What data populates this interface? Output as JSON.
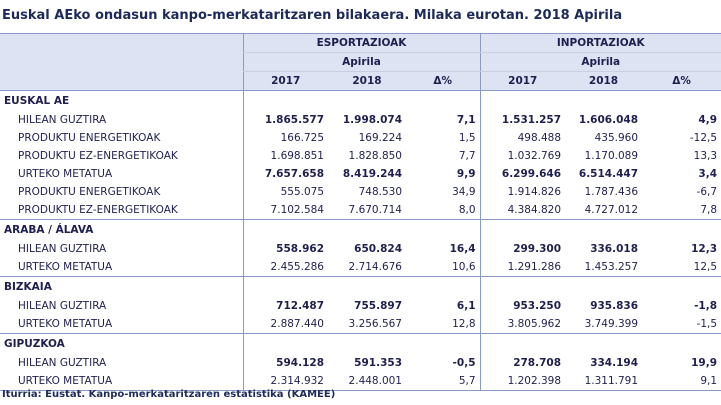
{
  "title": "Euskal AEko ondasun kanpo-merkataritzaren  bilakaera. Milaka eurotan. 2018 Apirila",
  "header": {
    "export_label": "ESPORTAZIOAK",
    "import_label": "INPORTAZIOAK",
    "month_label": "Apirila",
    "cols": [
      "2017",
      "2018",
      "Δ%"
    ]
  },
  "regions": [
    {
      "name": "EUSKAL AE",
      "rows": [
        {
          "label": "HILEAN GUZTIRA",
          "bold": true,
          "values": [
            "1.865.577",
            "1.998.074",
            "7,1",
            "1.531.257",
            "1.606.048",
            "4,9"
          ]
        },
        {
          "label": "PRODUKTU ENERGETIKOAK",
          "bold": false,
          "values": [
            "166.725",
            "169.224",
            "1,5",
            "498.488",
            "435.960",
            "-12,5"
          ]
        },
        {
          "label": "PRODUKTU EZ-ENERGETIKOAK",
          "bold": false,
          "values": [
            "1.698.851",
            "1.828.850",
            "7,7",
            "1.032.769",
            "1.170.089",
            "13,3"
          ]
        },
        {
          "label": "URTEKO METATUA",
          "bold": true,
          "values": [
            "7.657.658",
            "8.419.244",
            "9,9",
            "6.299.646",
            "6.514.447",
            "3,4"
          ]
        },
        {
          "label": "PRODUKTU ENERGETIKOAK",
          "bold": false,
          "values": [
            "555.075",
            "748.530",
            "34,9",
            "1.914.826",
            "1.787.436",
            "-6,7"
          ]
        },
        {
          "label": "PRODUKTU EZ-ENERGETIKOAK",
          "bold": false,
          "values": [
            "7.102.584",
            "7.670.714",
            "8,0",
            "4.384.820",
            "4.727.012",
            "7,8"
          ]
        }
      ]
    },
    {
      "name": "ARABA / ÁLAVA",
      "rows": [
        {
          "label": "HILEAN GUZTIRA",
          "bold": true,
          "values": [
            "558.962",
            "650.824",
            "16,4",
            "299.300",
            "336.018",
            "12,3"
          ]
        },
        {
          "label": "URTEKO METATUA",
          "bold": false,
          "values": [
            "2.455.286",
            "2.714.676",
            "10,6",
            "1.291.286",
            "1.453.257",
            "12,5"
          ]
        }
      ]
    },
    {
      "name": "BIZKAIA",
      "rows": [
        {
          "label": "HILEAN GUZTIRA",
          "bold": true,
          "values": [
            "712.487",
            "755.897",
            "6,1",
            "953.250",
            "935.836",
            "-1,8"
          ]
        },
        {
          "label": "URTEKO METATUA",
          "bold": false,
          "values": [
            "2.887.440",
            "3.256.567",
            "12,8",
            "3.805.962",
            "3.749.399",
            "-1,5"
          ]
        }
      ]
    },
    {
      "name": "GIPUZKOA",
      "rows": [
        {
          "label": "HILEAN GUZTIRA",
          "bold": true,
          "values": [
            "594.128",
            "591.353",
            "-0,5",
            "278.708",
            "334.194",
            "19,9"
          ]
        },
        {
          "label": "URTEKO METATUA",
          "bold": false,
          "values": [
            "2.314.932",
            "2.448.001",
            "5,7",
            "1.202.398",
            "1.311.791",
            "9,1"
          ]
        }
      ]
    }
  ],
  "source": "Iturria: Eustat. Kanpo-merkataritzaren estatistika (KAMEE)"
}
